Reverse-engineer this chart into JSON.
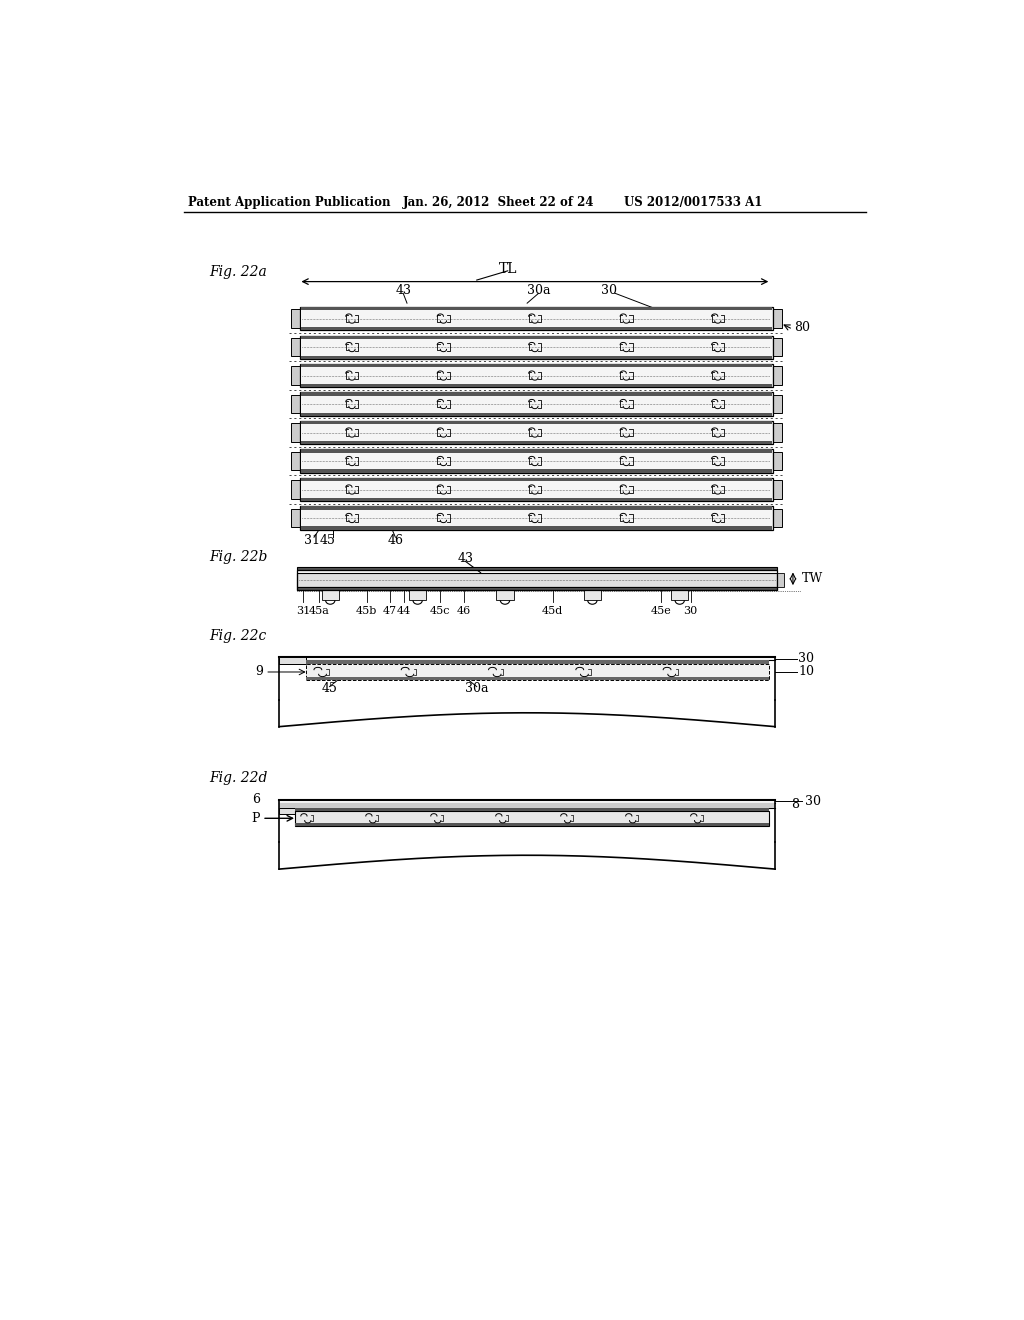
{
  "bg_color": "#ffffff",
  "header_left": "Patent Application Publication",
  "header_mid": "Jan. 26, 2012  Sheet 22 of 24",
  "header_right": "US 2012/0017533 A1",
  "fig22a_label": "Fig. 22a",
  "fig22b_label": "Fig. 22b",
  "fig22c_label": "Fig. 22c",
  "fig22d_label": "Fig. 22d",
  "line_color": "#000000",
  "text_color": "#000000",
  "gray_dark": "#888888",
  "gray_mid": "#aaaaaa",
  "gray_light": "#cccccc",
  "gray_strip": "#d4d4d4",
  "gray_inner": "#eeeeee",
  "gray_tab": "#999999"
}
